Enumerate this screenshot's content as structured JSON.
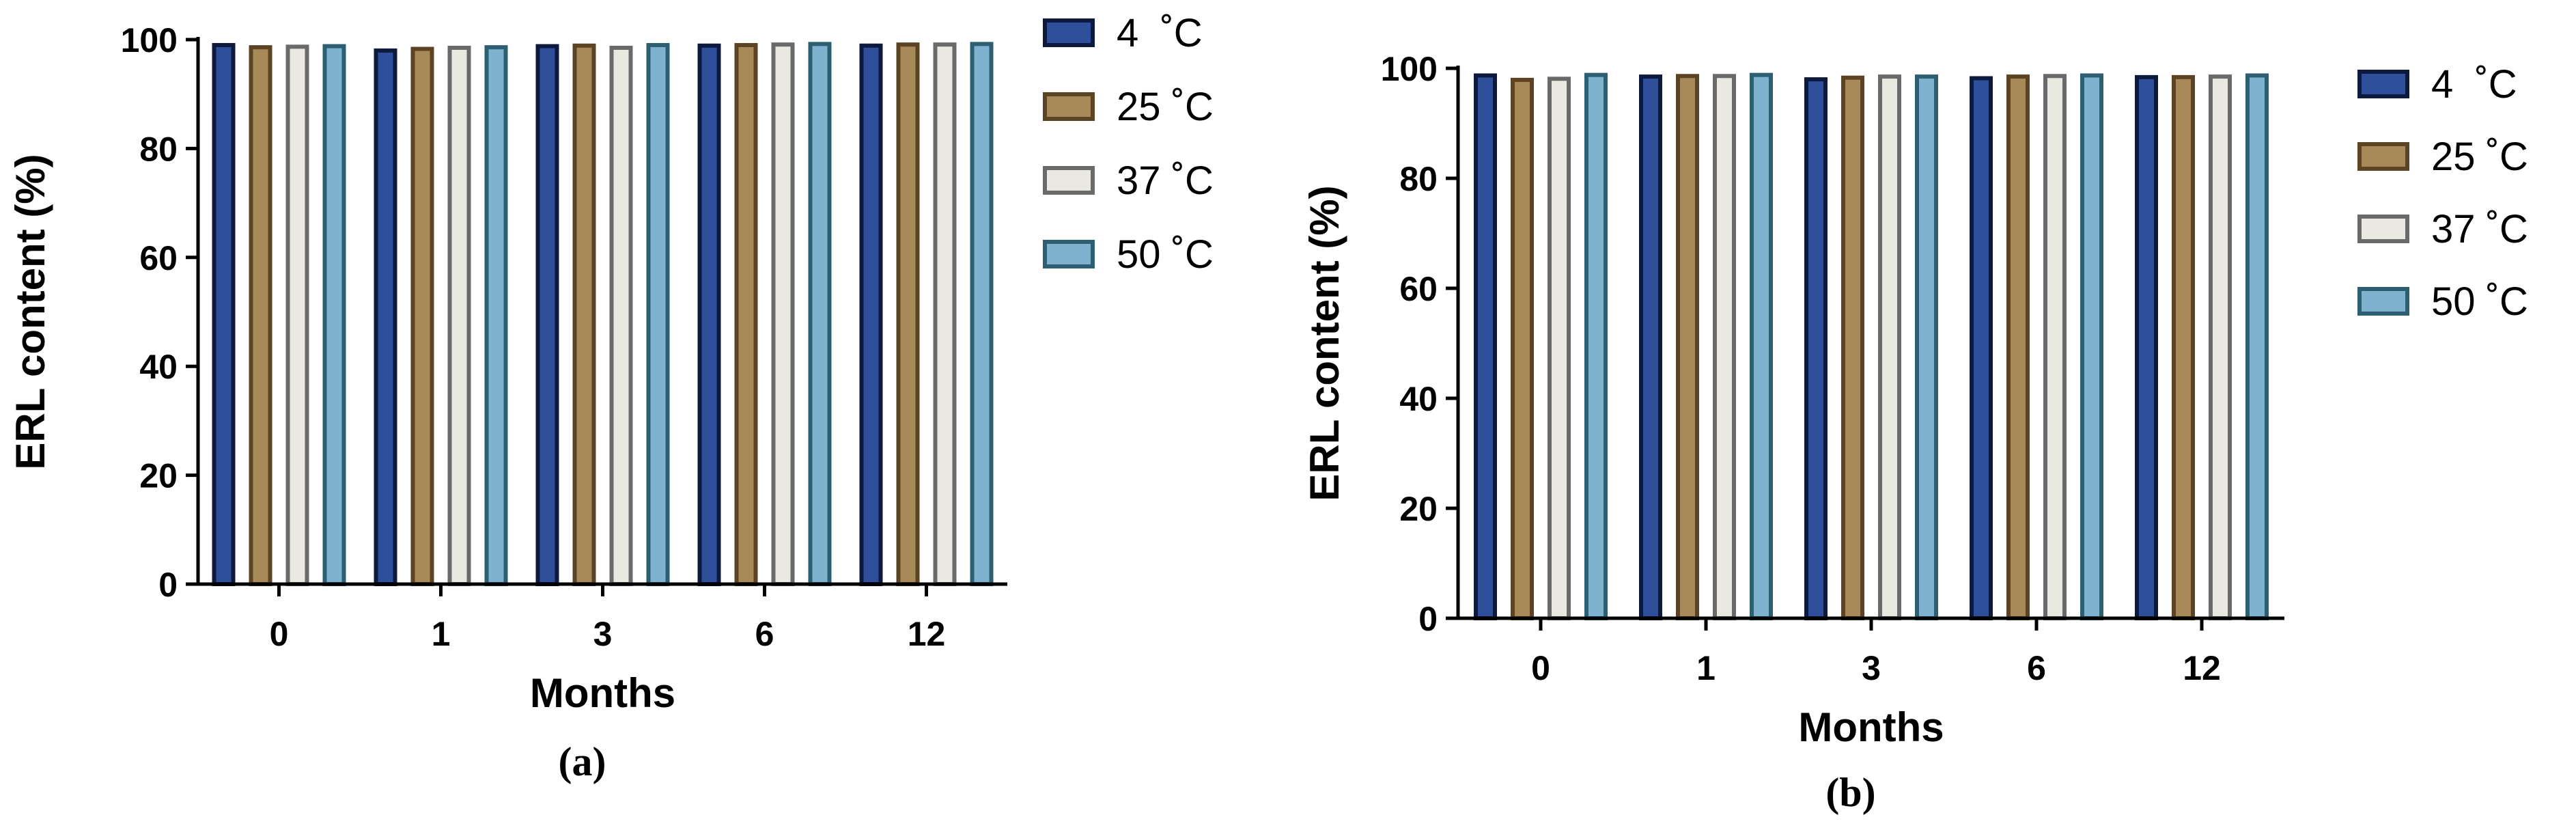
{
  "chart_data": [
    {
      "type": "bar",
      "panel_label": "(a)",
      "xlabel": "Months",
      "ylabel": "ERL content (%)",
      "categories": [
        "0",
        "1",
        "3",
        "6",
        "12"
      ],
      "ylim": [
        0,
        100
      ],
      "yticks": [
        0,
        20,
        40,
        60,
        80,
        100
      ],
      "grid": false,
      "legend_position": "right",
      "series": [
        {
          "name": "4  ˚C",
          "fill": "#2f4f9a",
          "stroke": "#0d1a3d",
          "values": [
            99.0,
            98.0,
            98.8,
            98.9,
            98.9
          ]
        },
        {
          "name": "25 ˚C",
          "fill": "#a8895a",
          "stroke": "#5c4324",
          "values": [
            98.6,
            98.3,
            98.9,
            99.0,
            99.1
          ]
        },
        {
          "name": "37 ˚C",
          "fill": "#e9e9e2",
          "stroke": "#6a6a6a",
          "values": [
            98.7,
            98.5,
            98.5,
            99.1,
            99.1
          ]
        },
        {
          "name": "50 ˚C",
          "fill": "#7fb2cf",
          "stroke": "#2e5e72",
          "values": [
            98.8,
            98.6,
            99.0,
            99.2,
            99.2
          ]
        }
      ]
    },
    {
      "type": "bar",
      "panel_label": "(b)",
      "xlabel": "Months",
      "ylabel": "ERL content (%)",
      "categories": [
        "0",
        "1",
        "3",
        "6",
        "12"
      ],
      "ylim": [
        0,
        100
      ],
      "yticks": [
        0,
        20,
        40,
        60,
        80,
        100
      ],
      "grid": false,
      "legend_position": "right",
      "series": [
        {
          "name": "4  ˚C",
          "fill": "#2f4f9a",
          "stroke": "#0d1a3d",
          "values": [
            98.7,
            98.5,
            98.0,
            98.2,
            98.4
          ]
        },
        {
          "name": "25 ˚C",
          "fill": "#a8895a",
          "stroke": "#5c4324",
          "values": [
            97.9,
            98.6,
            98.3,
            98.5,
            98.4
          ]
        },
        {
          "name": "37 ˚C",
          "fill": "#e9e9e2",
          "stroke": "#6a6a6a",
          "values": [
            98.1,
            98.6,
            98.5,
            98.6,
            98.5
          ]
        },
        {
          "name": "50 ˚C",
          "fill": "#7fb2cf",
          "stroke": "#2e5e72",
          "values": [
            98.8,
            98.8,
            98.5,
            98.7,
            98.7
          ]
        }
      ]
    }
  ]
}
